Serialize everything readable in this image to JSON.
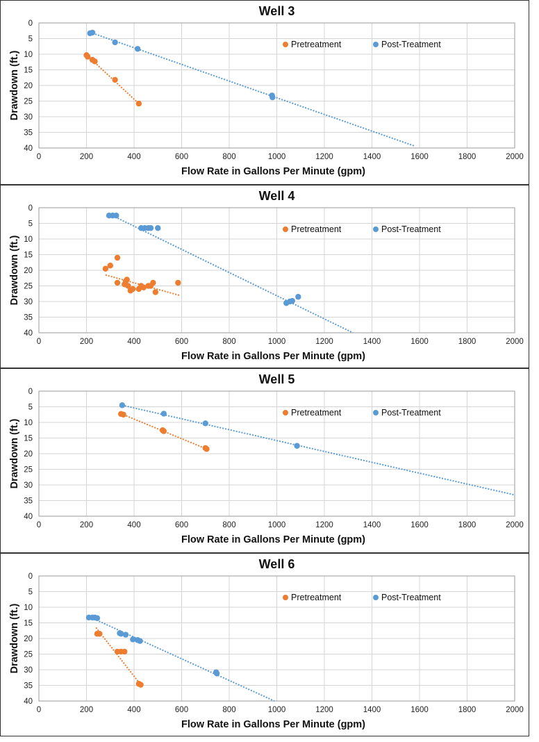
{
  "colors": {
    "pretreatment": "#ED7D31",
    "post_treatment": "#5B9BD5",
    "grid": "#d4d4d4",
    "text": "#111111"
  },
  "chart_data": [
    {
      "type": "scatter",
      "title": "Well 3",
      "xlabel": "Flow Rate in Gallons Per Minute (gpm)",
      "ylabel": "Drawdown (ft.)",
      "xlim": [
        0,
        2000
      ],
      "ylim": [
        0,
        40
      ],
      "y_inverted": true,
      "x_ticks": [
        0,
        200,
        400,
        600,
        800,
        1000,
        1200,
        1400,
        1600,
        1800,
        2000
      ],
      "y_ticks": [
        0,
        5,
        10,
        15,
        20,
        25,
        30,
        35,
        40
      ],
      "legend_position": "top-right",
      "series": [
        {
          "name": "Pretreatment",
          "color": "#ED7D31",
          "points": [
            [
              200,
              10.3
            ],
            [
              205,
              10.8
            ],
            [
              225,
              11.8
            ],
            [
              235,
              12.3
            ],
            [
              320,
              18.2
            ],
            [
              420,
              25.8
            ]
          ],
          "trendline": [
            [
              200,
              10.2
            ],
            [
              420,
              25.8
            ]
          ]
        },
        {
          "name": "Post-Treatment",
          "color": "#5B9BD5",
          "points": [
            [
              215,
              3.3
            ],
            [
              225,
              3.1
            ],
            [
              320,
              6.2
            ],
            [
              415,
              8.3
            ],
            [
              980,
              23.2
            ],
            [
              982,
              23.8
            ]
          ],
          "trendline": [
            [
              215,
              3.0
            ],
            [
              1580,
              39.4
            ]
          ]
        }
      ]
    },
    {
      "type": "scatter",
      "title": "Well 4",
      "xlabel": "Flow Rate in Gallons Per Minute (gpm)",
      "ylabel": "Drawdown (ft.)",
      "xlim": [
        0,
        2000
      ],
      "ylim": [
        0,
        40
      ],
      "y_inverted": true,
      "x_ticks": [
        0,
        200,
        400,
        600,
        800,
        1000,
        1200,
        1400,
        1600,
        1800,
        2000
      ],
      "y_ticks": [
        0,
        5,
        10,
        15,
        20,
        25,
        30,
        35,
        40
      ],
      "legend_position": "top-right",
      "series": [
        {
          "name": "Pretreatment",
          "color": "#ED7D31",
          "points": [
            [
              280,
              19.5
            ],
            [
              300,
              18.5
            ],
            [
              330,
              16
            ],
            [
              330,
              24
            ],
            [
              360,
              24.5
            ],
            [
              365,
              23.5
            ],
            [
              370,
              23
            ],
            [
              375,
              25
            ],
            [
              385,
              26.5
            ],
            [
              395,
              26
            ],
            [
              420,
              26
            ],
            [
              430,
              25
            ],
            [
              440,
              25.5
            ],
            [
              460,
              25
            ],
            [
              470,
              25
            ],
            [
              480,
              24
            ],
            [
              490,
              27
            ],
            [
              585,
              24
            ]
          ],
          "trendline": [
            [
              280,
              21.5
            ],
            [
              590,
              28
            ]
          ]
        },
        {
          "name": "Post-Treatment",
          "color": "#5B9BD5",
          "points": [
            [
              295,
              2.5
            ],
            [
              310,
              2.5
            ],
            [
              325,
              2.5
            ],
            [
              430,
              6.5
            ],
            [
              445,
              6.5
            ],
            [
              460,
              6.5
            ],
            [
              470,
              6.5
            ],
            [
              500,
              6.5
            ],
            [
              1040,
              30.5
            ],
            [
              1055,
              30
            ],
            [
              1065,
              29.8
            ],
            [
              1090,
              28.5
            ]
          ],
          "trendline": [
            [
              300,
              2.2
            ],
            [
              1320,
              40
            ]
          ]
        }
      ]
    },
    {
      "type": "scatter",
      "title": "Well 5",
      "xlabel": "Flow Rate in Gallons Per Minute (gpm)",
      "ylabel": "Drawdown (ft.)",
      "xlim": [
        0,
        2000
      ],
      "ylim": [
        0,
        40
      ],
      "y_inverted": true,
      "x_ticks": [
        0,
        200,
        400,
        600,
        800,
        1000,
        1200,
        1400,
        1600,
        1800,
        2000
      ],
      "y_ticks": [
        0,
        5,
        10,
        15,
        20,
        25,
        30,
        35,
        40
      ],
      "legend_position": "top-right",
      "series": [
        {
          "name": "Pretreatment",
          "color": "#ED7D31",
          "points": [
            [
              345,
              7.3
            ],
            [
              355,
              7.5
            ],
            [
              520,
              12.5
            ],
            [
              525,
              12.8
            ],
            [
              700,
              18.2
            ],
            [
              705,
              18.5
            ]
          ],
          "trendline": [
            [
              345,
              7.2
            ],
            [
              705,
              18.5
            ]
          ]
        },
        {
          "name": "Post-Treatment",
          "color": "#5B9BD5",
          "points": [
            [
              350,
              4.5
            ],
            [
              525,
              7.2
            ],
            [
              700,
              10.3
            ],
            [
              1085,
              17.5
            ]
          ],
          "trendline": [
            [
              350,
              4.5
            ],
            [
              2000,
              33.2
            ]
          ]
        }
      ]
    },
    {
      "type": "scatter",
      "title": "Well 6",
      "xlabel": "Flow Rate in Gallons Per Minute (gpm)",
      "ylabel": "Drawdown (ft.)",
      "xlim": [
        0,
        2000
      ],
      "ylim": [
        0,
        40
      ],
      "y_inverted": true,
      "x_ticks": [
        0,
        200,
        400,
        600,
        800,
        1000,
        1200,
        1400,
        1600,
        1800,
        2000
      ],
      "y_ticks": [
        0,
        5,
        10,
        15,
        20,
        25,
        30,
        35,
        40
      ],
      "legend_position": "top-right",
      "series": [
        {
          "name": "Pretreatment",
          "color": "#ED7D31",
          "points": [
            [
              245,
              18.5
            ],
            [
              255,
              18.5
            ],
            [
              330,
              24.2
            ],
            [
              345,
              24.2
            ],
            [
              360,
              24.2
            ],
            [
              420,
              34.5
            ],
            [
              428,
              34.8
            ]
          ],
          "trendline": [
            [
              240,
              16.5
            ],
            [
              430,
              35
            ]
          ]
        },
        {
          "name": "Post-Treatment",
          "color": "#5B9BD5",
          "points": [
            [
              210,
              13.3
            ],
            [
              225,
              13.3
            ],
            [
              235,
              13.3
            ],
            [
              245,
              13.5
            ],
            [
              340,
              18.3
            ],
            [
              345,
              18.5
            ],
            [
              365,
              18.8
            ],
            [
              395,
              20.3
            ],
            [
              415,
              20.5
            ],
            [
              425,
              20.8
            ],
            [
              745,
              30.8
            ],
            [
              748,
              31.2
            ]
          ],
          "trendline": [
            [
              210,
              13
            ],
            [
              990,
              40
            ]
          ]
        }
      ]
    }
  ]
}
